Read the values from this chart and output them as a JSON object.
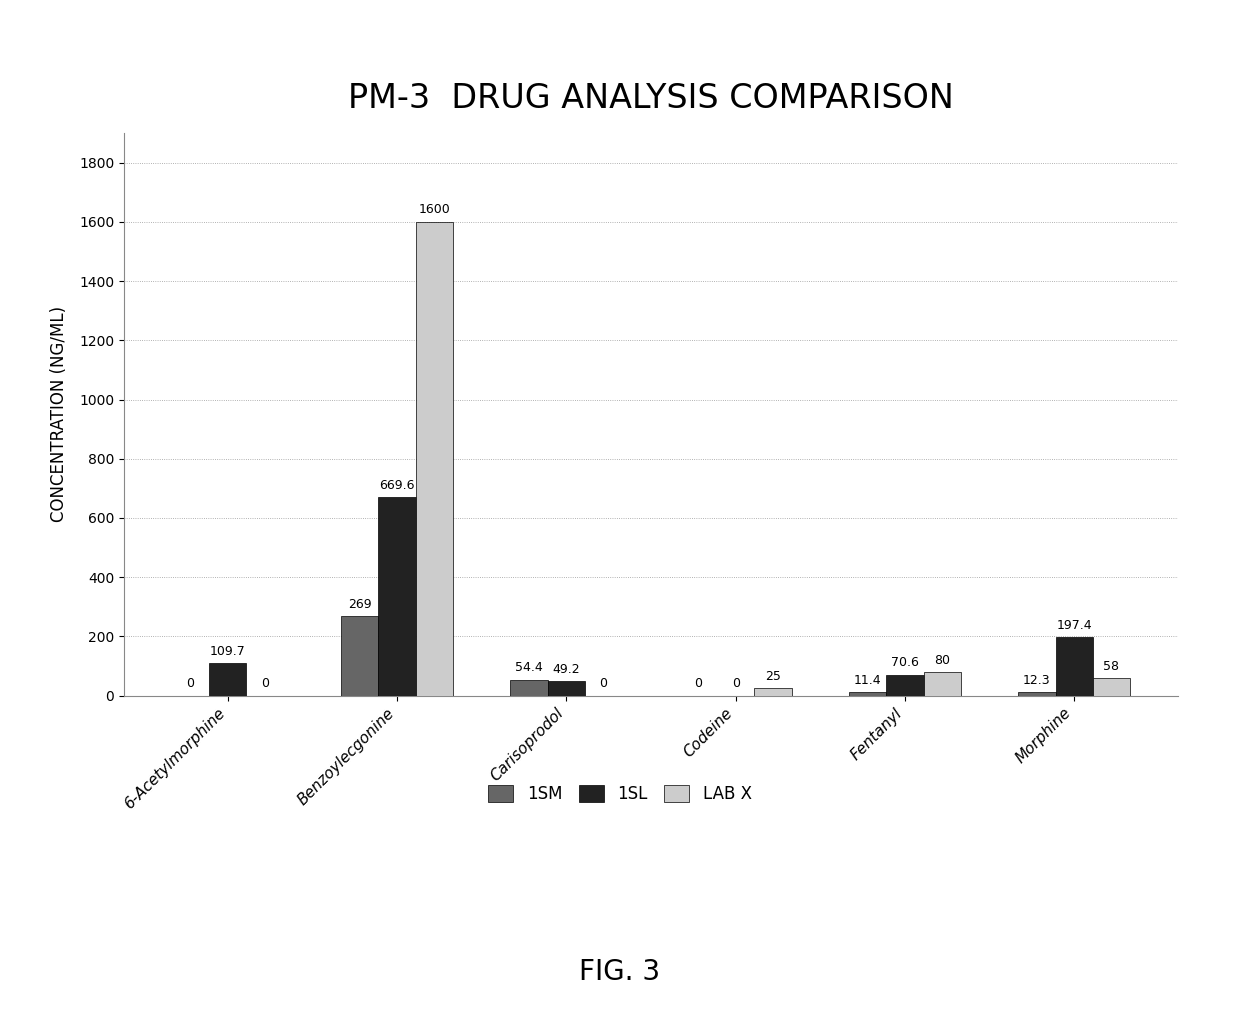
{
  "title": "PM-3  DRUG ANALYSIS COMPARISON",
  "ylabel": "CONCENTRATION (NG/ML)",
  "categories": [
    "6-Acetylmorphine",
    "Benzoylecgonine",
    "Carisoprodol",
    "Codeine",
    "Fentanyl",
    "Morphine"
  ],
  "series": {
    "1SM": [
      0,
      269.0,
      54.4,
      0,
      11.4,
      12.3
    ],
    "1SL": [
      109.7,
      669.6,
      49.2,
      0,
      70.6,
      197.4
    ],
    "LAB X": [
      0,
      1600,
      0,
      25,
      80,
      58
    ]
  },
  "bar_colors": {
    "1SM": "#666666",
    "1SL": "#222222",
    "LAB X": "#cccccc"
  },
  "bar_hatches": {
    "1SM": "///",
    "1SL": "///",
    "LAB X": "..."
  },
  "ylim": [
    0,
    1900
  ],
  "yticks": [
    0,
    200,
    400,
    600,
    800,
    1000,
    1200,
    1400,
    1600,
    1800
  ],
  "fig_caption": "FIG. 3",
  "background_color": "#ffffff",
  "title_fontsize": 24,
  "ylabel_fontsize": 12,
  "bar_width": 0.22,
  "annotation_fontsize": 9,
  "legend_fontsize": 12
}
